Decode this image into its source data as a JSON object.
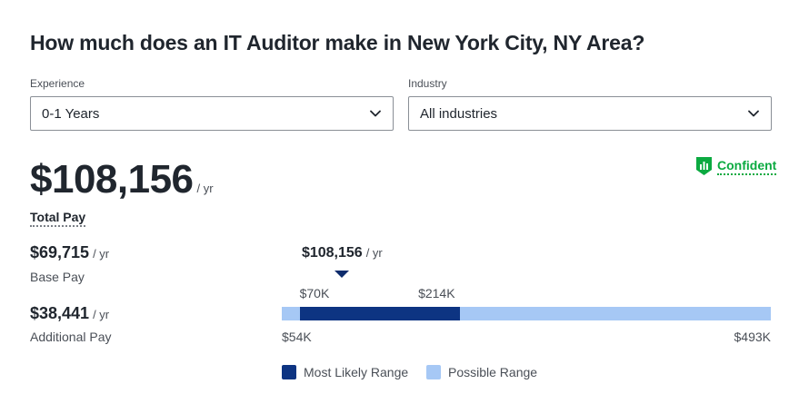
{
  "title": "How much does an IT Auditor make in New York City, NY Area?",
  "filters": {
    "experience": {
      "label": "Experience",
      "value": "0-1 Years"
    },
    "industry": {
      "label": "Industry",
      "value": "All industries"
    }
  },
  "confidence": {
    "label": "Confident",
    "color": "#0caa41"
  },
  "total_pay": {
    "amount": "$108,156",
    "unit": "/ yr",
    "label": "Total Pay"
  },
  "base_pay": {
    "amount": "$69,715",
    "unit": "/ yr",
    "label": "Base Pay"
  },
  "additional_pay": {
    "amount": "$38,441",
    "unit": "/ yr",
    "label": "Additional Pay"
  },
  "range": {
    "marker": {
      "amount": "$108,156",
      "unit": "/ yr",
      "value": 108156
    },
    "min": 54000,
    "max": 493000,
    "likely_low": 70000,
    "likely_high": 214000,
    "labels": {
      "likely_low": "$70K",
      "likely_high": "$214K",
      "min": "$54K",
      "max": "$493K"
    },
    "colors": {
      "likely": "#0d3482",
      "possible": "#a6c8f5",
      "marker": "#0d2c6c"
    }
  },
  "legend": {
    "likely": "Most Likely Range",
    "possible": "Possible Range"
  }
}
